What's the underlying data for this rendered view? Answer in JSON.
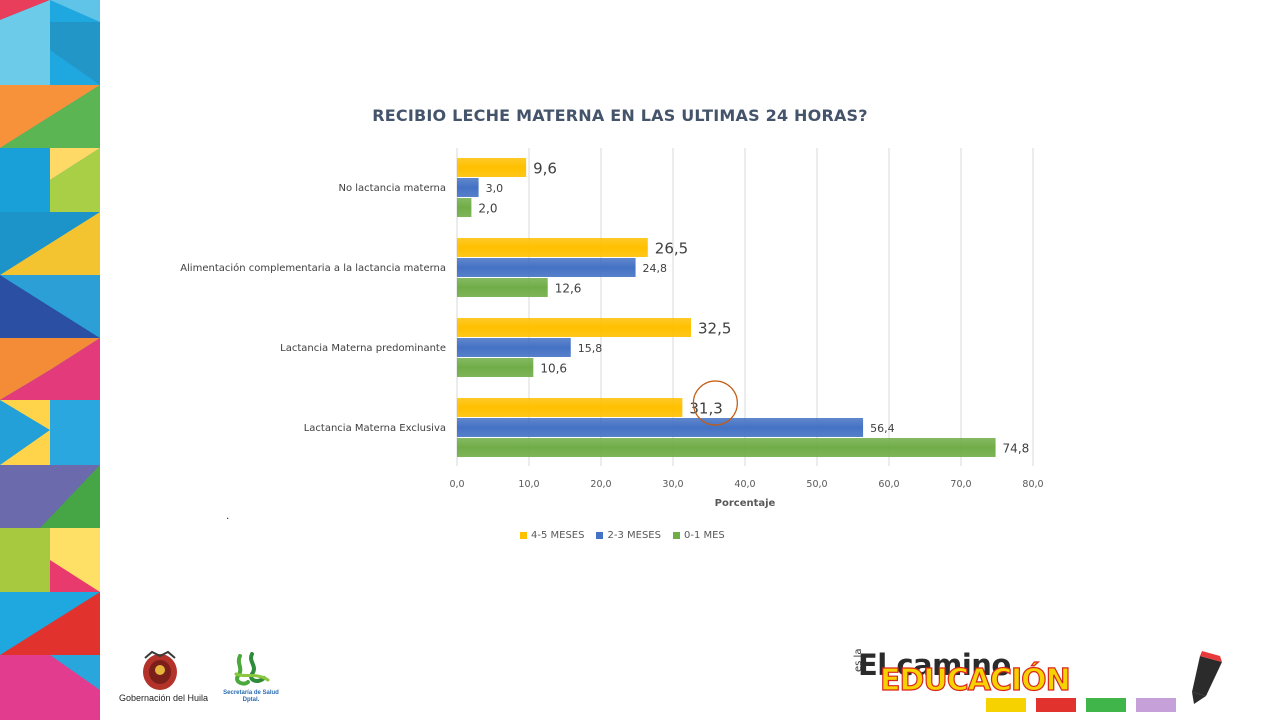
{
  "chart_data": {
    "type": "bar",
    "orientation": "horizontal",
    "title": "RECIBIO LECHE MATERNA   EN LAS ULTIMAS 24 HORAS?",
    "categories": [
      "No lactancia materna",
      "Alimentación complementaria a la lactancia materna",
      "Lactancia Materna predominante",
      "Lactancia Materna Exclusiva"
    ],
    "series": [
      {
        "name": "4-5 MESES",
        "color": "#ffc000",
        "values": [
          9.6,
          26.5,
          32.5,
          31.3
        ],
        "labels": [
          "9,6",
          "26,5",
          "32,5",
          "31,3"
        ]
      },
      {
        "name": "2-3 MESES",
        "color": "#4472c4",
        "values": [
          3.0,
          24.8,
          15.8,
          56.4
        ],
        "labels": [
          "3,0",
          "24,8",
          "15,8",
          "56,4"
        ]
      },
      {
        "name": "0-1 MES",
        "color": "#70ad47",
        "values": [
          2.0,
          12.6,
          10.6,
          74.8
        ],
        "labels": [
          "2,0",
          "12,6",
          "10,6",
          "74,8"
        ]
      }
    ],
    "xlabel": "Porcentaje",
    "xlim": [
      0,
      80
    ],
    "xticks": [
      0,
      10,
      20,
      30,
      40,
      50,
      60,
      70,
      80
    ],
    "xtick_labels": [
      "0,0",
      "10,0",
      "20,0",
      "30,0",
      "40,0",
      "50,0",
      "60,0",
      "70,0",
      "80,0"
    ],
    "grid": true,
    "legend": "bottom",
    "annotation": {
      "type": "circle",
      "category": "Lactancia Materna Exclusiva",
      "series": "4-5 MESES",
      "color": "#c55a11"
    }
  },
  "note": ".",
  "footer": {
    "gov_label": "Gobernación del Huila",
    "health_label_line1": "Secretaría de Salud",
    "health_label_line2": "Dptal.",
    "brand_line1": "El camino",
    "brand_prefix": "es la",
    "brand_line2": "EDUCACIÓN"
  }
}
